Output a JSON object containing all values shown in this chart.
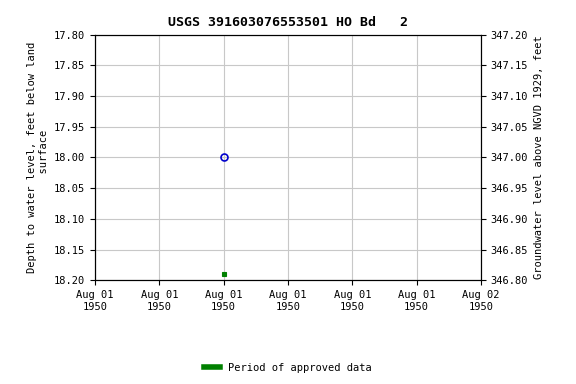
{
  "title": "USGS 391603076553501 HO Bd   2",
  "ylabel_left": "Depth to water level, feet below land\n surface",
  "ylabel_right": "Groundwater level above NGVD 1929, feet",
  "ylim_left_top": 17.8,
  "ylim_left_bottom": 18.2,
  "ylim_right_top": 347.2,
  "ylim_right_bottom": 346.8,
  "left_yticks": [
    17.8,
    17.85,
    17.9,
    17.95,
    18.0,
    18.05,
    18.1,
    18.15,
    18.2
  ],
  "right_yticks": [
    347.2,
    347.15,
    347.1,
    347.05,
    347.0,
    346.95,
    346.9,
    346.85,
    346.8
  ],
  "data_point_x_hours": 12,
  "data_point_y_open": 18.0,
  "data_point_y_filled": 18.19,
  "open_marker_color": "#0000cc",
  "filled_marker_color": "#008000",
  "background_color": "#ffffff",
  "grid_color": "#c8c8c8",
  "legend_label": "Period of approved data",
  "legend_color": "#008000",
  "title_fontsize": 9.5,
  "label_fontsize": 7.5,
  "tick_fontsize": 7.5,
  "xlim_start_hours": 0,
  "xlim_end_hours": 36,
  "xtick_hours": [
    0,
    6,
    12,
    18,
    24,
    30,
    36
  ],
  "xtick_labels": [
    "Aug 01\n1950",
    "Aug 01\n1950",
    "Aug 01\n1950",
    "Aug 01\n1950",
    "Aug 01\n1950",
    "Aug 01\n1950",
    "Aug 02\n1950"
  ]
}
